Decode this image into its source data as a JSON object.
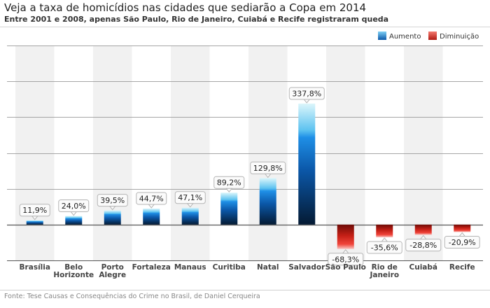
{
  "chart_data": {
    "type": "bar",
    "title": "Veja a taxa de homicídios nas cidades que sediarão a Copa em 2014",
    "subtitle": "Entre 2001 e 2008, apenas São Paulo, Rio de Janeiro, Cuiabá e Recife registraram queda",
    "xlabel": "",
    "ylabel": "",
    "ylim": [
      -100,
      500
    ],
    "grid": true,
    "legend": {
      "placement": "top-right",
      "entries": [
        {
          "name": "Aumento",
          "color": "#1f7fd9"
        },
        {
          "name": "Diminuição",
          "color": "#d9261c"
        }
      ]
    },
    "categories": [
      [
        "Brasília"
      ],
      [
        "Belo",
        "Horizonte"
      ],
      [
        "Porto",
        "Alegre"
      ],
      [
        "Fortaleza"
      ],
      [
        "Manaus"
      ],
      [
        "Curitiba"
      ],
      [
        "Natal"
      ],
      [
        "Salvador"
      ],
      [
        "São Paulo"
      ],
      [
        "Rio de",
        "Janeiro"
      ],
      [
        "Cuiabá"
      ],
      [
        "Recife"
      ]
    ],
    "values": [
      11.9,
      24.0,
      39.5,
      44.7,
      47.1,
      89.2,
      129.8,
      337.8,
      -68.3,
      -35.6,
      -28.8,
      -20.9
    ],
    "value_labels": [
      "11,9%",
      "24,0%",
      "39,5%",
      "44,7%",
      "47,1%",
      "89,2%",
      "129,8%",
      "337,8%",
      "-68,3%",
      "-35,6%",
      "-28,8%",
      "-20,9%"
    ]
  },
  "source": "Fonte: Tese Causas e Consequências do Crime no Brasil, de Daniel Cerqueira"
}
